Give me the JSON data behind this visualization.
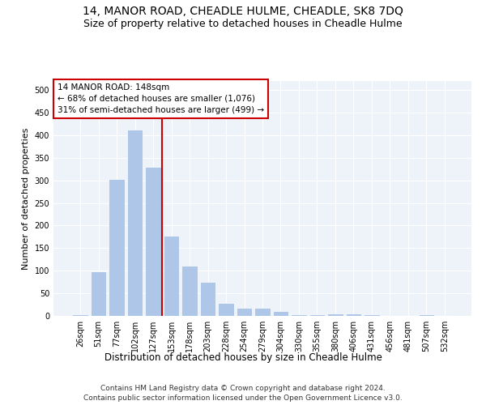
{
  "title": "14, MANOR ROAD, CHEADLE HULME, CHEADLE, SK8 7DQ",
  "subtitle": "Size of property relative to detached houses in Cheadle Hulme",
  "xlabel": "Distribution of detached houses by size in Cheadle Hulme",
  "ylabel": "Number of detached properties",
  "categories": [
    "26sqm",
    "51sqm",
    "77sqm",
    "102sqm",
    "127sqm",
    "153sqm",
    "178sqm",
    "203sqm",
    "228sqm",
    "254sqm",
    "279sqm",
    "304sqm",
    "330sqm",
    "355sqm",
    "380sqm",
    "406sqm",
    "431sqm",
    "456sqm",
    "481sqm",
    "507sqm",
    "532sqm"
  ],
  "values": [
    3,
    99,
    303,
    412,
    330,
    178,
    112,
    76,
    28,
    18,
    18,
    10,
    3,
    3,
    5,
    6,
    3,
    2,
    2,
    3,
    1
  ],
  "bar_color": "#aec6e8",
  "bar_edge_color": "#ffffff",
  "highlight_line_color": "#cc0000",
  "annotation_box_text": "14 MANOR ROAD: 148sqm\n← 68% of detached houses are smaller (1,076)\n31% of semi-detached houses are larger (499) →",
  "annotation_box_color": "#cc0000",
  "annotation_box_fill": "#ffffff",
  "ylim": [
    0,
    520
  ],
  "yticks": [
    0,
    50,
    100,
    150,
    200,
    250,
    300,
    350,
    400,
    450,
    500
  ],
  "background_color": "#eef2f9",
  "footer_line1": "Contains HM Land Registry data © Crown copyright and database right 2024.",
  "footer_line2": "Contains public sector information licensed under the Open Government Licence v3.0.",
  "title_fontsize": 10,
  "subtitle_fontsize": 9,
  "xlabel_fontsize": 8.5,
  "ylabel_fontsize": 8,
  "tick_fontsize": 7,
  "annotation_fontsize": 7.5,
  "footer_fontsize": 6.5
}
